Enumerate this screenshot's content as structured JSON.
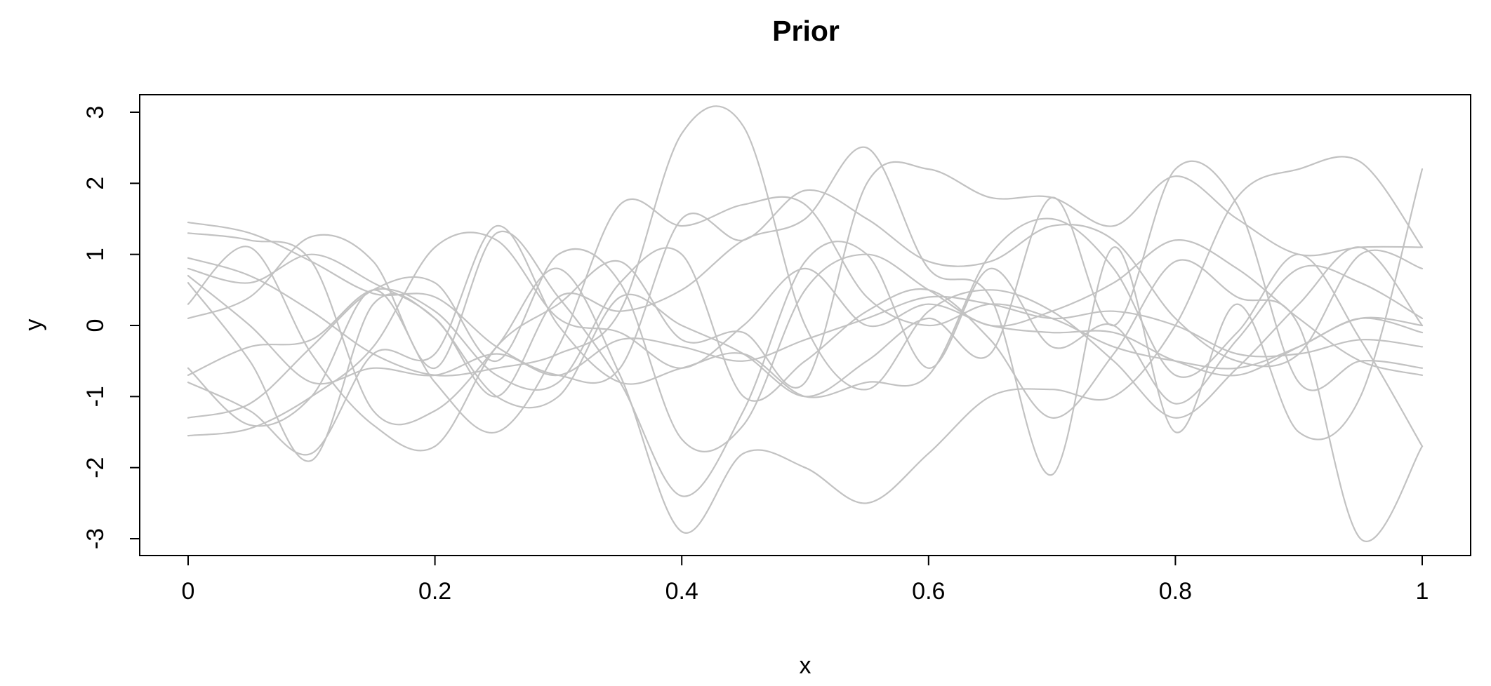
{
  "chart_data": {
    "type": "line",
    "title": "Prior",
    "xlabel": "x",
    "ylabel": "y",
    "xlim": [
      0,
      1
    ],
    "ylim": [
      -3,
      3
    ],
    "x_ticks": [
      0,
      0.2,
      0.4,
      0.6,
      0.8,
      1
    ],
    "x_tick_labels": [
      "0",
      "0.2",
      "0.4",
      "0.6",
      "0.8",
      "1"
    ],
    "y_ticks": [
      -3,
      -2,
      -1,
      0,
      1,
      2,
      3
    ],
    "y_tick_labels": [
      "-3",
      "-2",
      "-1",
      "0",
      "1",
      "2",
      "3"
    ],
    "grid": false,
    "legend": "none",
    "line_color": "#c2c2c2",
    "x": [
      0,
      0.05,
      0.1,
      0.15,
      0.2,
      0.25,
      0.3,
      0.35,
      0.4,
      0.45,
      0.5,
      0.55,
      0.6,
      0.65,
      0.7,
      0.75,
      0.8,
      0.85,
      0.9,
      0.95,
      1
    ],
    "series": [
      {
        "values": [
          1.45,
          1.3,
          0.9,
          0.45,
          0.4,
          -0.3,
          -0.7,
          -0.6,
          1.5,
          1.2,
          1.9,
          1.5,
          0.9,
          0.9,
          1.4,
          1.2,
          0.1,
          -0.5,
          -0.4,
          1.0,
          0.8
        ]
      },
      {
        "values": [
          0.95,
          0.7,
          0.2,
          -0.4,
          -0.7,
          -0.6,
          -0.4,
          0.2,
          2.7,
          2.8,
          0.0,
          -0.9,
          0.2,
          0.5,
          0.2,
          -0.5,
          -1.3,
          -0.6,
          0.3,
          1.1,
          0.0
        ]
      },
      {
        "values": [
          0.7,
          0.0,
          -0.8,
          -0.6,
          -0.7,
          -0.4,
          -0.7,
          -0.2,
          -0.3,
          -0.5,
          -0.2,
          0.1,
          0.4,
          0.3,
          0.1,
          0.2,
          0.0,
          -0.4,
          -0.4,
          -0.2,
          -0.3
        ]
      },
      {
        "values": [
          -0.6,
          -1.4,
          -1.0,
          0.5,
          -0.8,
          -1.5,
          -0.3,
          1.7,
          1.4,
          1.7,
          1.7,
          0.4,
          0.0,
          0.3,
          0.1,
          -0.3,
          -0.5,
          -0.6,
          -0.3,
          0.1,
          -0.1
        ]
      },
      {
        "values": [
          0.8,
          0.6,
          1.0,
          0.6,
          0.1,
          -1.0,
          -1.0,
          0.4,
          0.0,
          -0.4,
          -1.0,
          -0.5,
          0.1,
          -0.4,
          1.8,
          0.0,
          2.2,
          1.7,
          -0.8,
          -0.5,
          -0.6
        ]
      },
      {
        "values": [
          -1.3,
          -1.1,
          -0.3,
          0.5,
          0.6,
          -0.5,
          1.0,
          0.6,
          -1.6,
          -1.4,
          0.5,
          1.0,
          0.5,
          0.0,
          0.2,
          0.6,
          1.2,
          0.8,
          0.1,
          -0.5,
          -0.7
        ]
      },
      {
        "values": [
          -1.55,
          -1.45,
          -1.0,
          -0.3,
          1.1,
          1.2,
          0.1,
          -0.1,
          -0.6,
          0.0,
          0.8,
          0.0,
          0.3,
          0.0,
          -0.1,
          -0.1,
          -0.5,
          -0.7,
          -0.3,
          0.1,
          0.0
        ]
      },
      {
        "values": [
          0.1,
          0.4,
          1.25,
          0.9,
          -0.6,
          1.3,
          0.4,
          -0.8,
          -2.4,
          -1.2,
          0.9,
          1.0,
          -0.6,
          0.8,
          -0.3,
          0.0,
          -1.1,
          -0.2,
          0.8,
          0.6,
          0.1
        ]
      },
      {
        "values": [
          -0.8,
          -1.2,
          -1.8,
          -0.4,
          -0.4,
          1.4,
          0.0,
          -0.8,
          -0.6,
          -0.4,
          -1.0,
          -0.8,
          -0.7,
          1.0,
          1.5,
          0.8,
          -0.7,
          -0.1,
          1.0,
          -0.2,
          -1.7
        ]
      },
      {
        "values": [
          0.3,
          1.1,
          -0.4,
          -1.4,
          -1.7,
          -0.3,
          0.3,
          0.9,
          -0.2,
          -0.1,
          -0.8,
          2.0,
          2.2,
          1.8,
          1.8,
          1.4,
          2.1,
          1.5,
          1.0,
          1.1,
          1.1
        ]
      },
      {
        "values": [
          -0.7,
          -0.3,
          -0.2,
          0.5,
          0.2,
          -0.7,
          -0.8,
          0.6,
          1.0,
          -1.0,
          -0.5,
          0.2,
          0.5,
          -0.2,
          -1.3,
          -0.4,
          0.9,
          0.4,
          0.0,
          -3.0,
          -1.7
        ]
      },
      {
        "values": [
          1.3,
          1.2,
          0.9,
          -1.2,
          -1.2,
          -0.3,
          0.8,
          -0.7,
          -2.9,
          -1.8,
          -2.0,
          -2.5,
          -1.8,
          -1.0,
          -0.9,
          -1.0,
          0.0,
          1.8,
          2.2,
          2.3,
          1.1
        ]
      },
      {
        "values": [
          0.6,
          -0.5,
          -1.9,
          0.3,
          0.1,
          -1.0,
          0.4,
          0.2,
          0.5,
          1.2,
          1.5,
          2.5,
          0.8,
          0.4,
          -2.1,
          1.1,
          -1.5,
          0.3,
          -1.5,
          -1.0,
          2.2
        ]
      }
    ]
  }
}
